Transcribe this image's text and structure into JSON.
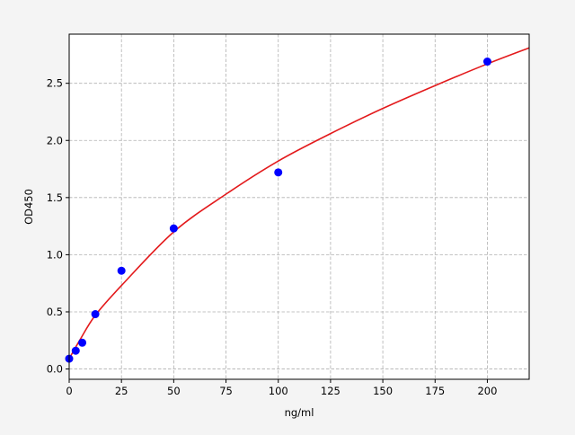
{
  "chart_data": {
    "type": "scatter",
    "title": "",
    "xlabel": "ng/ml",
    "ylabel": "OD450",
    "xlim": [
      0,
      220
    ],
    "ylim": [
      -0.09,
      2.93
    ],
    "grid": true,
    "x_ticks": [
      "0",
      "25",
      "50",
      "75",
      "100",
      "125",
      "150",
      "175",
      "200"
    ],
    "y_ticks": [
      "0.0",
      "0.5",
      "1.0",
      "1.5",
      "2.0",
      "2.5"
    ],
    "series": [
      {
        "kind": "points",
        "color": "#0000ff",
        "x": [
          0,
          3.125,
          6.25,
          12.5,
          25,
          50,
          100,
          200
        ],
        "y": [
          0.09,
          0.16,
          0.23,
          0.48,
          0.86,
          1.23,
          1.72,
          2.69
        ]
      },
      {
        "kind": "fit-curve",
        "color": "#e31a1c",
        "x": [
          0,
          5,
          12.5,
          25,
          50,
          75,
          100,
          125,
          150,
          175,
          200,
          220
        ],
        "y": [
          0.09,
          0.25,
          0.47,
          0.73,
          1.2,
          1.53,
          1.82,
          2.06,
          2.28,
          2.48,
          2.67,
          2.81
        ]
      }
    ]
  }
}
